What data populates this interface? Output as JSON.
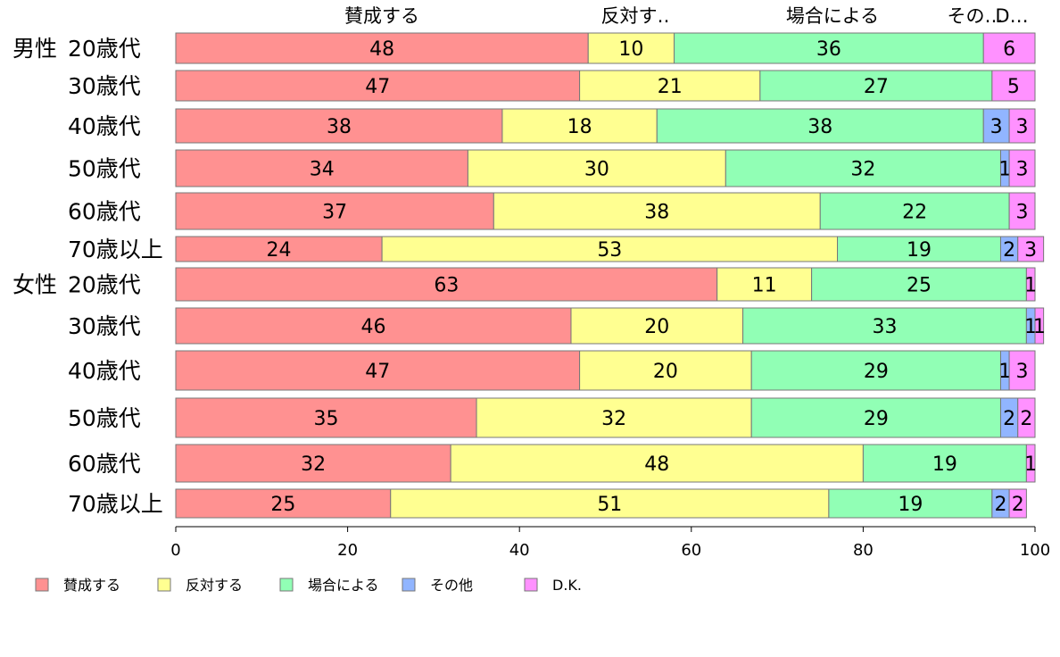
{
  "chart_data": {
    "type": "bar",
    "orientation": "horizontal",
    "stacked": true,
    "xlim": [
      0,
      100
    ],
    "x_ticks": [
      "0",
      "20",
      "40",
      "60",
      "80",
      "100"
    ],
    "legend_position": "bottom",
    "column_labels": [
      "賛成する",
      "反対す‥",
      "場合による",
      "その…",
      "D…"
    ],
    "categories": [
      {
        "group": "男性",
        "label": "20歳代"
      },
      {
        "group": "",
        "label": "30歳代"
      },
      {
        "group": "",
        "label": "40歳代"
      },
      {
        "group": "",
        "label": "50歳代"
      },
      {
        "group": "",
        "label": "60歳代"
      },
      {
        "group": "",
        "label": "70歳以上"
      },
      {
        "group": "女性",
        "label": "20歳代"
      },
      {
        "group": "",
        "label": "30歳代"
      },
      {
        "group": "",
        "label": "40歳代"
      },
      {
        "group": "",
        "label": "50歳代"
      },
      {
        "group": "",
        "label": "60歳代"
      },
      {
        "group": "",
        "label": "70歳以上"
      }
    ],
    "series": [
      {
        "name": "賛成する",
        "color": "#FF9191",
        "values": [
          48,
          47,
          38,
          34,
          37,
          24,
          63,
          46,
          47,
          35,
          32,
          25
        ]
      },
      {
        "name": "反対する",
        "color": "#FFFF91",
        "values": [
          10,
          21,
          18,
          30,
          38,
          53,
          11,
          20,
          20,
          32,
          48,
          51
        ]
      },
      {
        "name": "場合による",
        "color": "#91FFB5",
        "values": [
          36,
          27,
          38,
          32,
          22,
          19,
          25,
          33,
          29,
          29,
          19,
          19
        ]
      },
      {
        "name": "その他",
        "color": "#91B5FF",
        "values": [
          0,
          0,
          3,
          1,
          0,
          2,
          0,
          1,
          1,
          2,
          0,
          2
        ]
      },
      {
        "name": "D.K.",
        "color": "#FF91FF",
        "values": [
          6,
          5,
          3,
          3,
          3,
          3,
          1,
          1,
          3,
          2,
          1,
          2
        ]
      }
    ]
  }
}
